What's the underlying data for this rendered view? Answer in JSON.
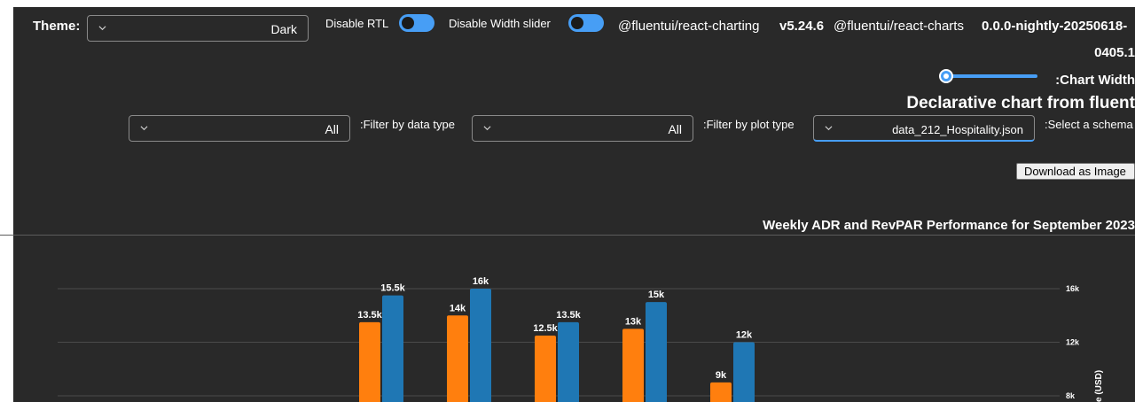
{
  "controls": {
    "theme_label": "Theme:",
    "theme_value": "Dark",
    "disable_rtl_label": "Disable RTL",
    "disable_width_slider_label": "Disable Width slider",
    "pkg1_name": "@fluentui/react-charting",
    "pkg1_version": "v5.24.6",
    "pkg2_name": "@fluentui/react-charts",
    "pkg2_version_line1": "0.0.0-nightly-20250618-",
    "pkg2_version_line2": "0405.1",
    "chart_width_label": ":Chart Width",
    "page_heading": "Declarative chart from fluent",
    "filter_data_value": "All",
    "filter_data_label": ":Filter by data type",
    "filter_plot_value": "All",
    "filter_plot_label": ":Filter by plot type",
    "schema_value": "data_212_Hospitality.json",
    "schema_label": ":Select a schema",
    "download_button": "Download as Image"
  },
  "colors": {
    "background": "#292929",
    "accent": "#479ef5",
    "adr": "#ff7f0e",
    "revpar": "#1f77b4",
    "grid": "#4a4a4a"
  },
  "icons": {
    "dropdown": "chevron-down-icon"
  },
  "chart_data": {
    "type": "bar",
    "title": "Weekly ADR and RevPAR Performance for September 2023",
    "ylabel": "e (USD)",
    "ytick_labels": [
      "16k",
      "12k",
      "8k"
    ],
    "yticks": [
      16000,
      12000,
      8000
    ],
    "series": [
      {
        "color": "#ff7f0e",
        "values": [
          13500,
          14000,
          12500,
          13000,
          9000
        ],
        "labels": [
          "13.5k",
          "14k",
          "12.5k",
          "13k",
          "9k"
        ]
      },
      {
        "color": "#1f77b4",
        "values": [
          15500,
          16000,
          13500,
          15000,
          12000
        ],
        "labels": [
          "15.5k",
          "16k",
          "13.5k",
          "15k",
          "12k"
        ]
      }
    ]
  }
}
